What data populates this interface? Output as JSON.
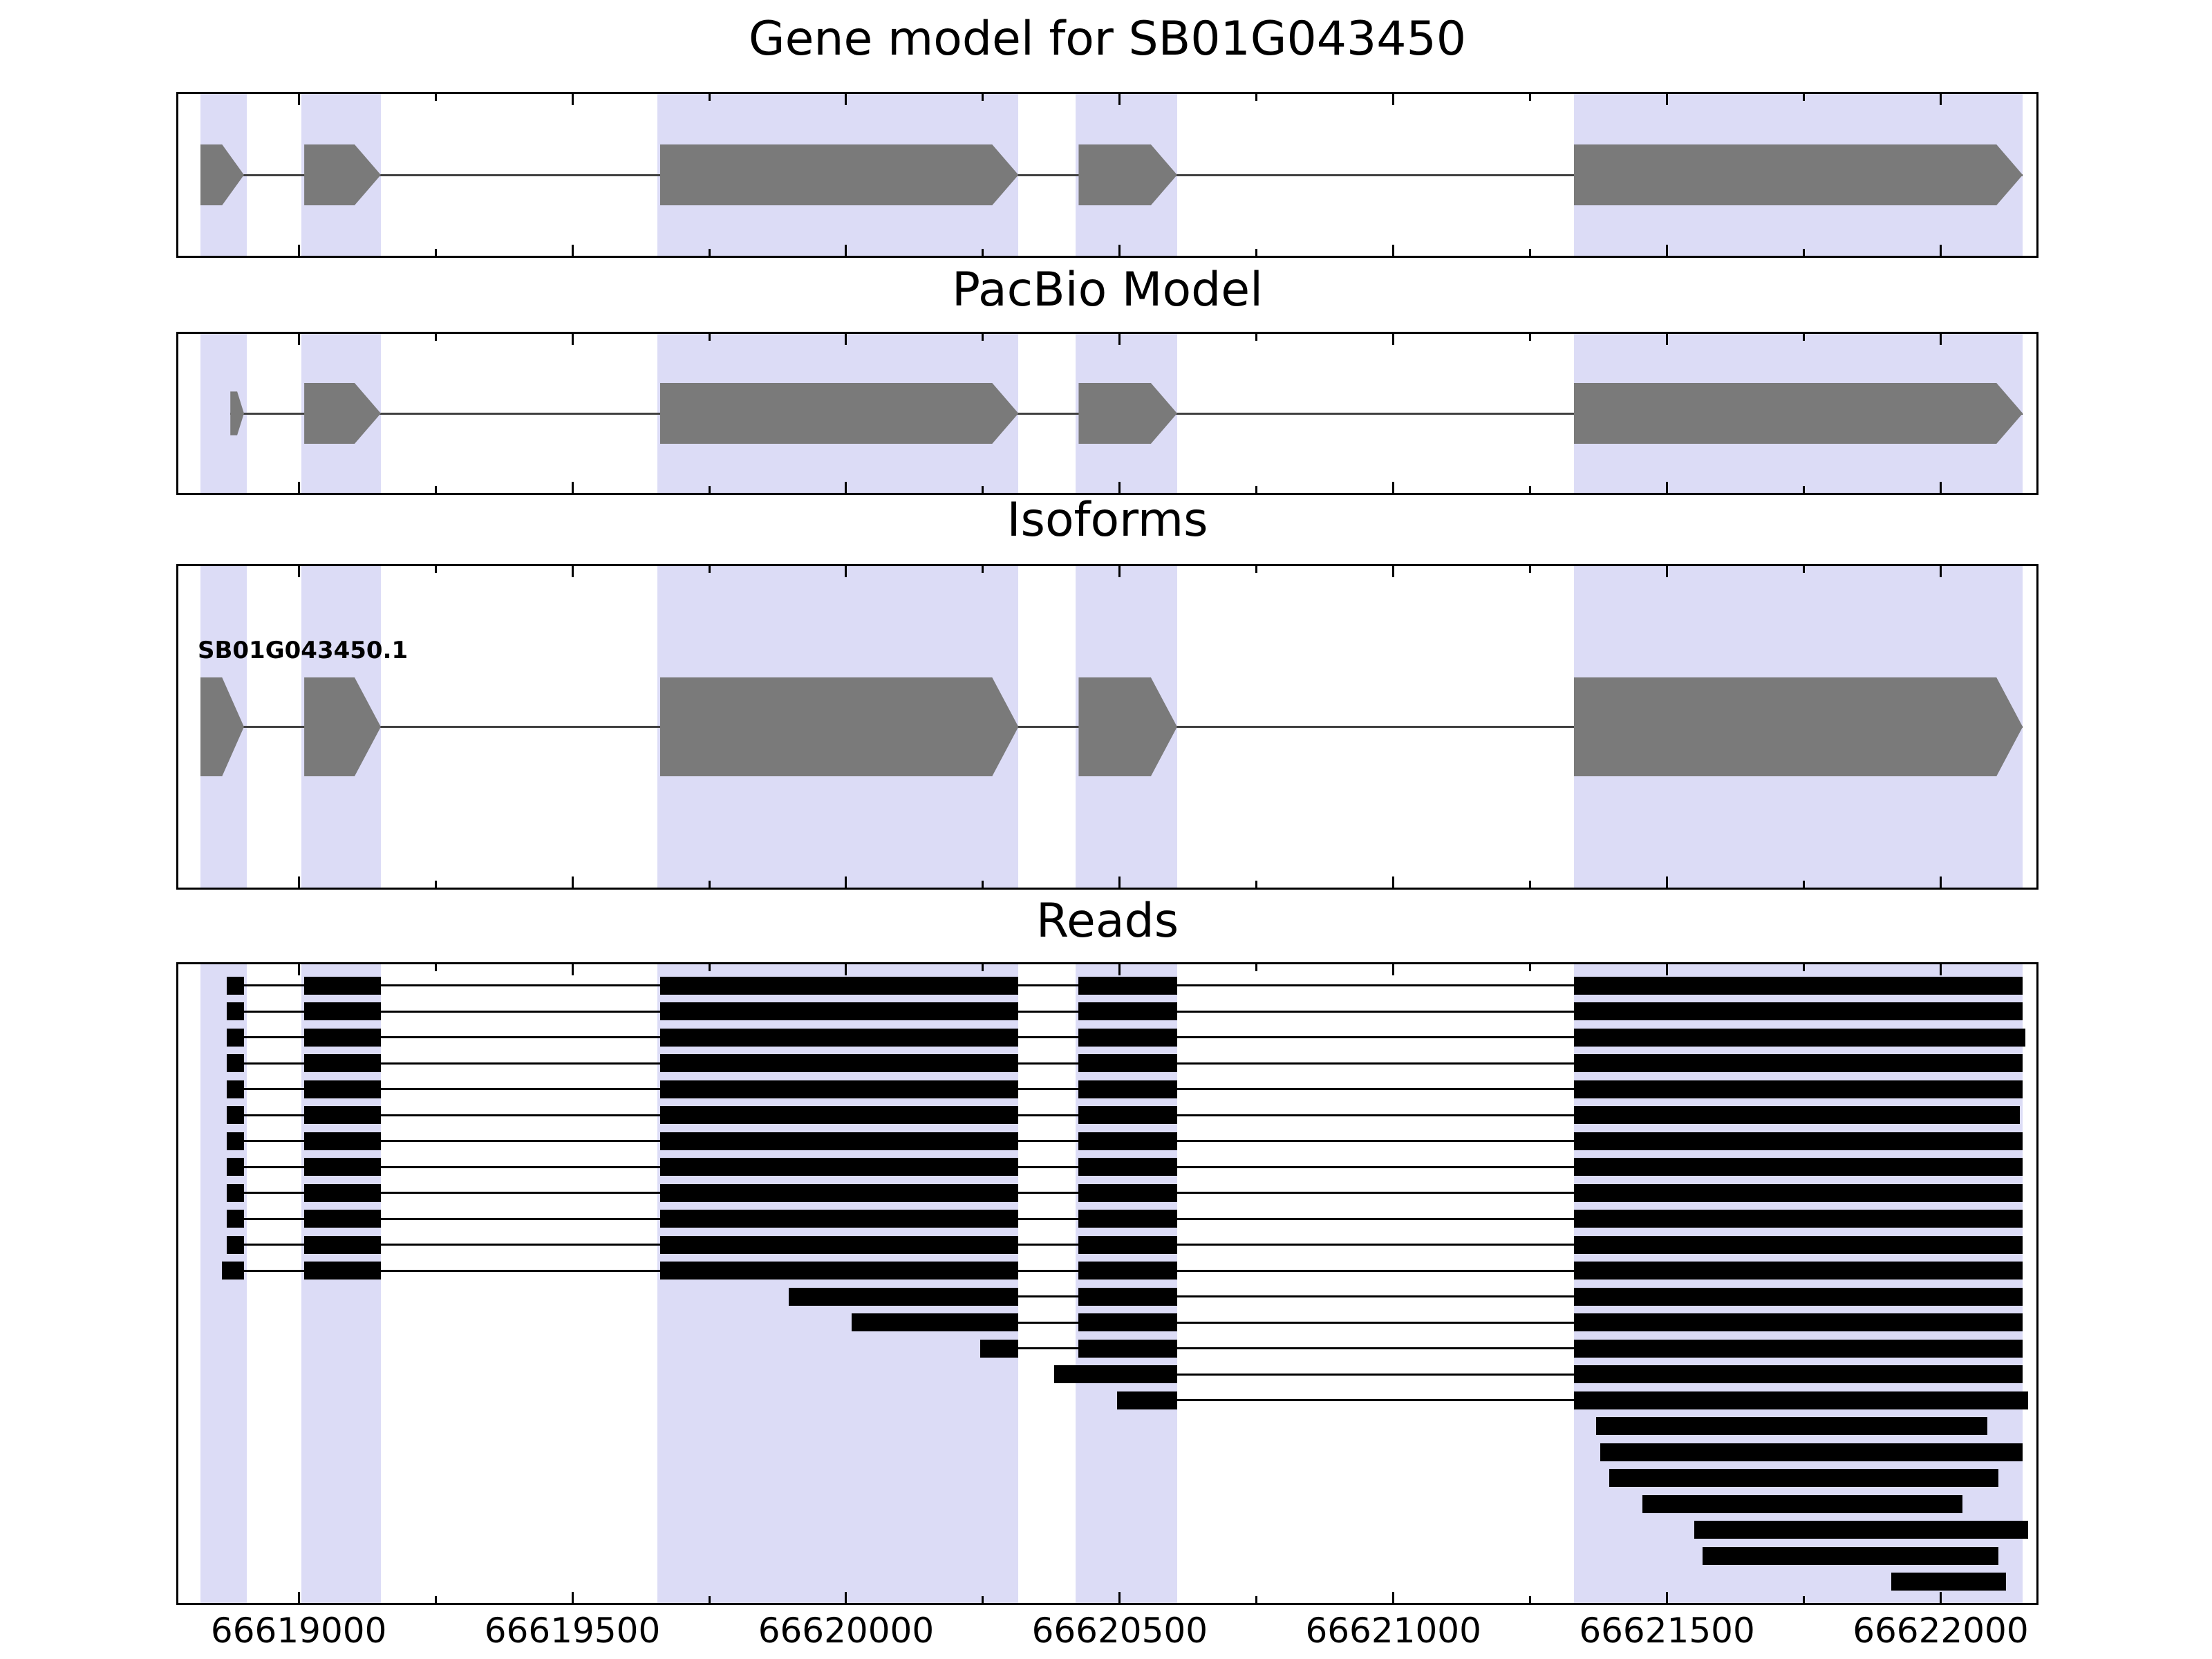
{
  "figure": {
    "background": "#ffffff"
  },
  "colors": {
    "highlight_band": "#dcdcf6",
    "exon_fill": "#7a7a7a",
    "read_fill": "#000000",
    "frame": "#000000",
    "intron_line": "#404040"
  },
  "chart_data": {
    "type": "gene-model-tracks",
    "panels": [
      {
        "id": "gene_model",
        "title": "Gene model for SB01G043450"
      },
      {
        "id": "pacbio",
        "title": "PacBio Model"
      },
      {
        "id": "isoforms",
        "title": "Isoforms"
      },
      {
        "id": "reads",
        "title": "Reads"
      }
    ],
    "axis": {
      "xmin": 66618780,
      "xmax": 66622175,
      "tick_interval": 500,
      "minor_tick_interval": 250,
      "ticks": [
        66619000,
        66619500,
        66620000,
        66620500,
        66621000,
        66621500,
        66622000
      ],
      "tick_labels": [
        "66619000",
        "66619500",
        "66620000",
        "66620500",
        "66621000",
        "66621500",
        "66622000"
      ]
    },
    "highlight_regions": [
      [
        66618820,
        66618905
      ],
      [
        66619005,
        66619150
      ],
      [
        66619655,
        66620315
      ],
      [
        66620420,
        66620605
      ],
      [
        66621330,
        66622150
      ]
    ],
    "gene_model": {
      "strand": "+",
      "exons": [
        [
          66618820,
          66618900
        ],
        [
          66619010,
          66619150
        ],
        [
          66619660,
          66620315
        ],
        [
          66620425,
          66620605
        ],
        [
          66621330,
          66622150
        ]
      ]
    },
    "pacbio_model": {
      "strand": "+",
      "exons": [
        [
          66618875,
          66618900
        ],
        [
          66619010,
          66619150
        ],
        [
          66619660,
          66620315
        ],
        [
          66620425,
          66620605
        ],
        [
          66621330,
          66622150
        ]
      ]
    },
    "isoforms": [
      {
        "name": "SB01G043450.1",
        "strand": "+",
        "exons": [
          [
            66618820,
            66618900
          ],
          [
            66619010,
            66619150
          ],
          [
            66619660,
            66620315
          ],
          [
            66620425,
            66620605
          ],
          [
            66621330,
            66622150
          ]
        ]
      }
    ],
    "reads": [
      {
        "blocks": [
          [
            66618868,
            66618900
          ],
          [
            66619010,
            66619150
          ],
          [
            66619660,
            66620315
          ],
          [
            66620425,
            66620605
          ],
          [
            66621330,
            66622150
          ]
        ]
      },
      {
        "blocks": [
          [
            66618868,
            66618900
          ],
          [
            66619010,
            66619150
          ],
          [
            66619660,
            66620315
          ],
          [
            66620425,
            66620605
          ],
          [
            66621330,
            66622150
          ]
        ]
      },
      {
        "blocks": [
          [
            66618868,
            66618900
          ],
          [
            66619010,
            66619150
          ],
          [
            66619660,
            66620315
          ],
          [
            66620425,
            66620605
          ],
          [
            66621330,
            66622155
          ]
        ]
      },
      {
        "blocks": [
          [
            66618868,
            66618900
          ],
          [
            66619010,
            66619150
          ],
          [
            66619660,
            66620315
          ],
          [
            66620425,
            66620605
          ],
          [
            66621330,
            66622150
          ]
        ]
      },
      {
        "blocks": [
          [
            66618868,
            66618900
          ],
          [
            66619010,
            66619150
          ],
          [
            66619660,
            66620315
          ],
          [
            66620425,
            66620605
          ],
          [
            66621330,
            66622150
          ]
        ]
      },
      {
        "blocks": [
          [
            66618868,
            66618900
          ],
          [
            66619010,
            66619150
          ],
          [
            66619660,
            66620315
          ],
          [
            66620425,
            66620605
          ],
          [
            66621330,
            66622145
          ]
        ]
      },
      {
        "blocks": [
          [
            66618868,
            66618900
          ],
          [
            66619010,
            66619150
          ],
          [
            66619660,
            66620315
          ],
          [
            66620425,
            66620605
          ],
          [
            66621330,
            66622150
          ]
        ]
      },
      {
        "blocks": [
          [
            66618868,
            66618900
          ],
          [
            66619010,
            66619150
          ],
          [
            66619660,
            66620315
          ],
          [
            66620425,
            66620605
          ],
          [
            66621330,
            66622150
          ]
        ]
      },
      {
        "blocks": [
          [
            66618868,
            66618900
          ],
          [
            66619010,
            66619150
          ],
          [
            66619660,
            66620315
          ],
          [
            66620425,
            66620605
          ],
          [
            66621330,
            66622150
          ]
        ]
      },
      {
        "blocks": [
          [
            66618868,
            66618900
          ],
          [
            66619010,
            66619150
          ],
          [
            66619660,
            66620315
          ],
          [
            66620425,
            66620605
          ],
          [
            66621330,
            66622150
          ]
        ]
      },
      {
        "blocks": [
          [
            66618868,
            66618900
          ],
          [
            66619010,
            66619150
          ],
          [
            66619660,
            66620315
          ],
          [
            66620425,
            66620605
          ],
          [
            66621330,
            66622150
          ]
        ]
      },
      {
        "blocks": [
          [
            66618860,
            66618900
          ],
          [
            66619010,
            66619150
          ],
          [
            66619660,
            66620315
          ],
          [
            66620425,
            66620605
          ],
          [
            66621330,
            66622150
          ]
        ]
      },
      {
        "blocks": [
          [
            66619895,
            66620315
          ],
          [
            66620425,
            66620605
          ],
          [
            66621330,
            66622150
          ]
        ]
      },
      {
        "blocks": [
          [
            66620010,
            66620315
          ],
          [
            66620425,
            66620605
          ],
          [
            66621330,
            66622150
          ]
        ]
      },
      {
        "blocks": [
          [
            66620245,
            66620315
          ],
          [
            66620425,
            66620605
          ],
          [
            66621330,
            66622150
          ]
        ]
      },
      {
        "blocks": [
          [
            66620380,
            66620605
          ],
          [
            66621330,
            66622150
          ]
        ]
      },
      {
        "blocks": [
          [
            66620495,
            66620605
          ],
          [
            66621330,
            66622160
          ]
        ]
      },
      {
        "blocks": [
          [
            66621370,
            66622085
          ]
        ]
      },
      {
        "blocks": [
          [
            66621378,
            66622150
          ]
        ]
      },
      {
        "blocks": [
          [
            66621395,
            66622105
          ]
        ]
      },
      {
        "blocks": [
          [
            66621455,
            66622040
          ]
        ]
      },
      {
        "blocks": [
          [
            66621550,
            66622160
          ]
        ]
      },
      {
        "blocks": [
          [
            66621565,
            66622105
          ]
        ]
      },
      {
        "blocks": [
          [
            66621910,
            66622120
          ]
        ]
      }
    ]
  }
}
